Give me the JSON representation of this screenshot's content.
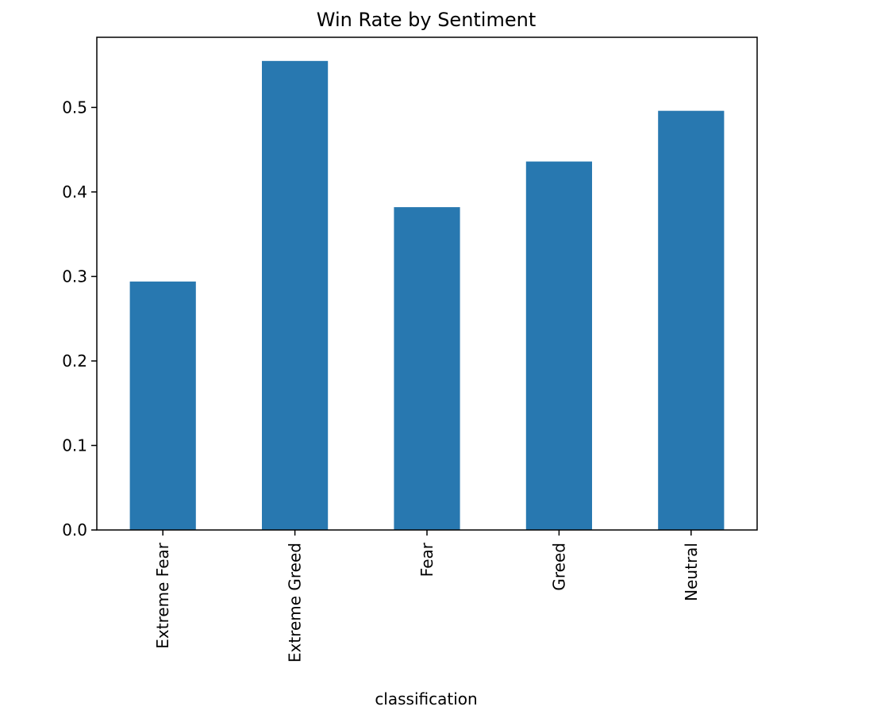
{
  "chart_data": {
    "type": "bar",
    "title": "Win Rate by Sentiment",
    "xlabel": "classification",
    "ylabel": "",
    "categories": [
      "Extreme Fear",
      "Extreme Greed",
      "Fear",
      "Greed",
      "Neutral"
    ],
    "values": [
      0.294,
      0.555,
      0.382,
      0.436,
      0.496
    ],
    "ylim": [
      0,
      0.583
    ],
    "yticks": [
      0.0,
      0.1,
      0.2,
      0.3,
      0.4,
      0.5
    ],
    "ytick_labels": [
      "0.0",
      "0.1",
      "0.2",
      "0.3",
      "0.4",
      "0.5"
    ],
    "grid": false,
    "legend": "none",
    "bar_color": "#2878b0"
  }
}
